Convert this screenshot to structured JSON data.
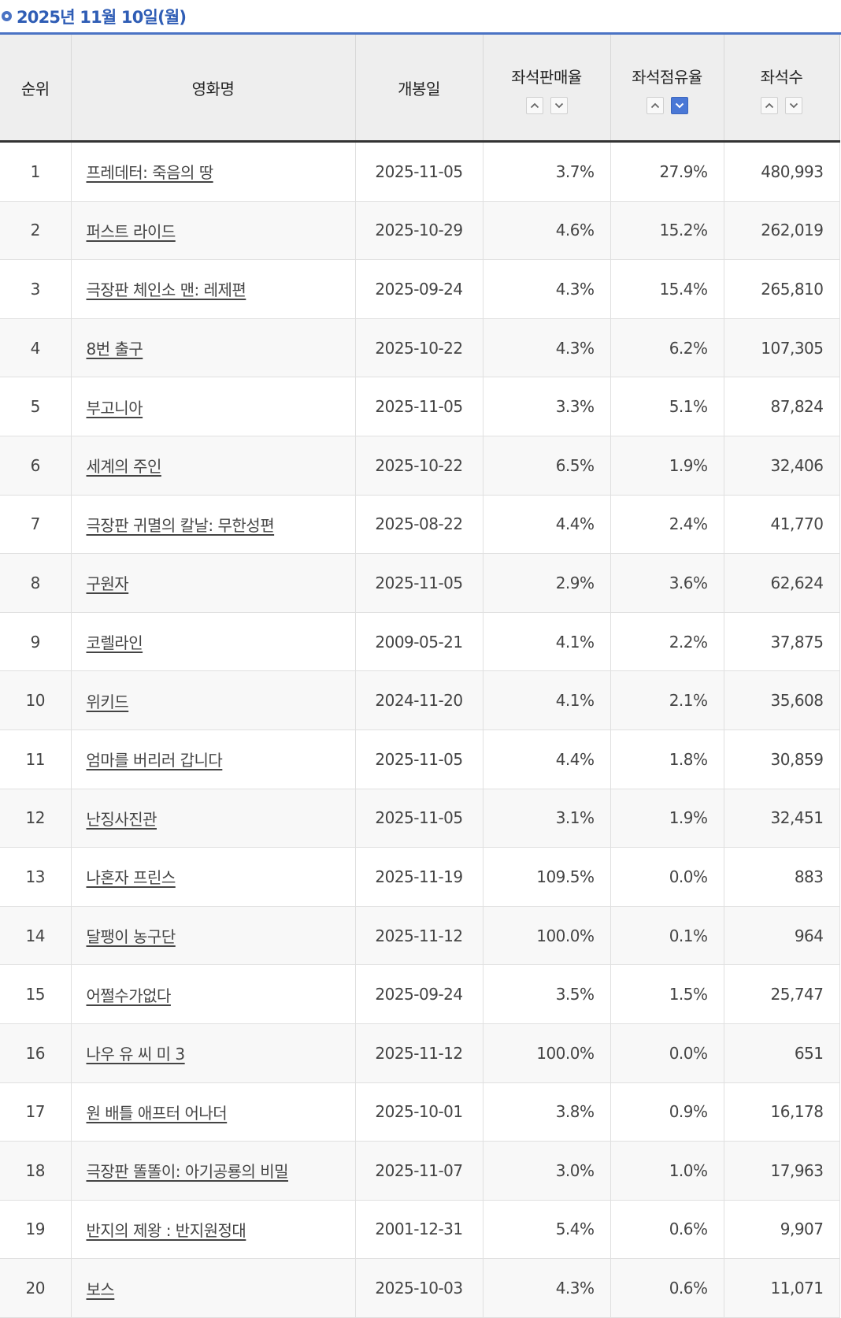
{
  "header": {
    "date_title": "2025년 11월 10일(월)"
  },
  "columns": {
    "rank": "순위",
    "title": "영화명",
    "release_date": "개봉일",
    "seat_sales_rate": "좌석판매율",
    "seat_share": "좌석점유율",
    "seats": "좌석수"
  },
  "sort": {
    "seat_sales_rate": "none",
    "seat_share": "desc",
    "seats": "none"
  },
  "colors": {
    "accent": "#4a73c4",
    "active_sort": "#4a78d6"
  },
  "rows": [
    {
      "rank": "1",
      "title": "프레데터: 죽음의 땅",
      "release_date": "2025-11-05",
      "sales_rate": "3.7%",
      "share": "27.9%",
      "seats": "480,993"
    },
    {
      "rank": "2",
      "title": "퍼스트 라이드",
      "release_date": "2025-10-29",
      "sales_rate": "4.6%",
      "share": "15.2%",
      "seats": "262,019"
    },
    {
      "rank": "3",
      "title": "극장판 체인소 맨: 레제편",
      "release_date": "2025-09-24",
      "sales_rate": "4.3%",
      "share": "15.4%",
      "seats": "265,810"
    },
    {
      "rank": "4",
      "title": "8번 출구",
      "release_date": "2025-10-22",
      "sales_rate": "4.3%",
      "share": "6.2%",
      "seats": "107,305"
    },
    {
      "rank": "5",
      "title": "부고니아",
      "release_date": "2025-11-05",
      "sales_rate": "3.3%",
      "share": "5.1%",
      "seats": "87,824"
    },
    {
      "rank": "6",
      "title": "세계의 주인",
      "release_date": "2025-10-22",
      "sales_rate": "6.5%",
      "share": "1.9%",
      "seats": "32,406"
    },
    {
      "rank": "7",
      "title": "극장판 귀멸의 칼날: 무한성편",
      "release_date": "2025-08-22",
      "sales_rate": "4.4%",
      "share": "2.4%",
      "seats": "41,770"
    },
    {
      "rank": "8",
      "title": "구원자",
      "release_date": "2025-11-05",
      "sales_rate": "2.9%",
      "share": "3.6%",
      "seats": "62,624"
    },
    {
      "rank": "9",
      "title": "코렐라인",
      "release_date": "2009-05-21",
      "sales_rate": "4.1%",
      "share": "2.2%",
      "seats": "37,875"
    },
    {
      "rank": "10",
      "title": "위키드",
      "release_date": "2024-11-20",
      "sales_rate": "4.1%",
      "share": "2.1%",
      "seats": "35,608"
    },
    {
      "rank": "11",
      "title": "엄마를 버리러 갑니다",
      "release_date": "2025-11-05",
      "sales_rate": "4.4%",
      "share": "1.8%",
      "seats": "30,859"
    },
    {
      "rank": "12",
      "title": "난징사진관",
      "release_date": "2025-11-05",
      "sales_rate": "3.1%",
      "share": "1.9%",
      "seats": "32,451"
    },
    {
      "rank": "13",
      "title": "나혼자 프린스",
      "release_date": "2025-11-19",
      "sales_rate": "109.5%",
      "share": "0.0%",
      "seats": "883"
    },
    {
      "rank": "14",
      "title": "달팽이 농구단",
      "release_date": "2025-11-12",
      "sales_rate": "100.0%",
      "share": "0.1%",
      "seats": "964"
    },
    {
      "rank": "15",
      "title": "어쩔수가없다",
      "release_date": "2025-09-24",
      "sales_rate": "3.5%",
      "share": "1.5%",
      "seats": "25,747"
    },
    {
      "rank": "16",
      "title": "나우 유 씨 미 3",
      "release_date": "2025-11-12",
      "sales_rate": "100.0%",
      "share": "0.0%",
      "seats": "651"
    },
    {
      "rank": "17",
      "title": "원 배틀 애프터 어나더",
      "release_date": "2025-10-01",
      "sales_rate": "3.8%",
      "share": "0.9%",
      "seats": "16,178"
    },
    {
      "rank": "18",
      "title": "극장판 똘똘이: 아기공룡의 비밀",
      "release_date": "2025-11-07",
      "sales_rate": "3.0%",
      "share": "1.0%",
      "seats": "17,963"
    },
    {
      "rank": "19",
      "title": "반지의 제왕 : 반지원정대",
      "release_date": "2001-12-31",
      "sales_rate": "5.4%",
      "share": "0.6%",
      "seats": "9,907"
    },
    {
      "rank": "20",
      "title": "보스",
      "release_date": "2025-10-03",
      "sales_rate": "4.3%",
      "share": "0.6%",
      "seats": "11,071"
    }
  ]
}
